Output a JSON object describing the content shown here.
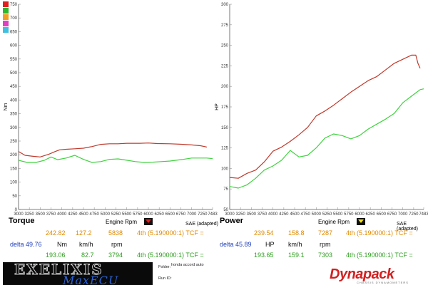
{
  "legend_colors": [
    "#e02020",
    "#2db82d",
    "#f0a020",
    "#e040c0",
    "#40c0e0"
  ],
  "torque": {
    "title": "Torque",
    "ylabel": "Nm",
    "rpm_label": "Engine Rpm",
    "sae_label": "SAE (adapted)",
    "dropdown_icon": "triangle-down-red",
    "row1": {
      "value": "242.82",
      "speed": "127.2",
      "rpm": "5838",
      "gear": "4th (5.190000:1) TCF ="
    },
    "delta": {
      "label": "delta 49.76",
      "unit1": "Nm",
      "unit2": "km/h",
      "unit3": "rpm"
    },
    "row2": {
      "value": "193.06",
      "speed": "82.7",
      "rpm": "3794",
      "gear": "4th (5.190000:1) TCF ="
    }
  },
  "power": {
    "title": "Power",
    "ylabel": "HP",
    "rpm_label": "Engine Rpm",
    "sae_label": "SAE (adapted)",
    "dropdown_icon": "triangle-down-yellow",
    "row1": {
      "value": "239.54",
      "speed": "158.8",
      "rpm": "7287",
      "gear": "4th (5.190000:1) TCF ="
    },
    "delta": {
      "label": "delta 45.89",
      "unit1": "HP",
      "unit2": "km/h",
      "unit3": "rpm"
    },
    "row2": {
      "value": "193.65",
      "speed": "159.1",
      "rpm": "7303",
      "gear": "4th (5.190000:1) TCF ="
    }
  },
  "footer": {
    "logo_top": "EXELIXIS",
    "logo_bottom": "MaxECU",
    "folder_label": "Folder:",
    "folder_value": "honda accord auto",
    "run_label": "Run ID:",
    "brand": "Dynapack",
    "brand_sub": "CHASSIS DYNAMOMETERS"
  },
  "chart_data": [
    {
      "type": "line",
      "title": "Torque",
      "xlabel": "Engine Rpm",
      "ylabel": "Nm",
      "xlim": [
        3000,
        7483
      ],
      "ylim": [
        0,
        750
      ],
      "x_ticks": [
        "3000",
        "3250",
        "3500",
        "3750",
        "4000",
        "4250",
        "4500",
        "4750",
        "5000",
        "5250",
        "5500",
        "5750",
        "6000",
        "6250",
        "6500",
        "6750",
        "7000",
        "7250",
        "7483"
      ],
      "y_ticks": [
        "0",
        "50",
        "100",
        "150",
        "200",
        "250",
        "300",
        "350",
        "400",
        "450",
        "500",
        "550",
        "600",
        "650",
        "700",
        "750"
      ],
      "series": [
        {
          "color": "#c0392b",
          "x": [
            3000,
            3150,
            3300,
            3500,
            3700,
            3850,
            3950,
            4100,
            4300,
            4500,
            4700,
            4900,
            5100,
            5300,
            5500,
            5800,
            6000,
            6200,
            6500,
            6800,
            7000,
            7200,
            7300,
            7350
          ],
          "y": [
            212,
            198,
            195,
            192,
            202,
            212,
            218,
            220,
            222,
            224,
            230,
            238,
            240,
            240,
            242,
            242,
            243,
            241,
            240,
            238,
            236,
            233,
            230,
            228
          ]
        },
        {
          "color": "#3fd23f",
          "x": [
            3000,
            3200,
            3400,
            3600,
            3750,
            3900,
            4100,
            4300,
            4500,
            4700,
            4900,
            5100,
            5300,
            5500,
            5700,
            5900,
            6100,
            6300,
            6500,
            6800,
            7000,
            7200,
            7350,
            7483
          ],
          "y": [
            180,
            172,
            172,
            180,
            192,
            182,
            188,
            198,
            183,
            172,
            175,
            183,
            185,
            180,
            175,
            172,
            173,
            175,
            177,
            183,
            188,
            188,
            188,
            186
          ]
        }
      ]
    },
    {
      "type": "line",
      "title": "Power",
      "xlabel": "Engine Rpm",
      "ylabel": "HP",
      "xlim": [
        3000,
        7483
      ],
      "ylim": [
        50,
        300
      ],
      "x_ticks": [
        "3000",
        "3250",
        "3500",
        "3750",
        "4000",
        "4250",
        "4500",
        "4750",
        "5000",
        "5250",
        "5500",
        "5750",
        "6000",
        "6250",
        "6500",
        "6750",
        "7000",
        "7250",
        "7483"
      ],
      "y_ticks": [
        "50",
        "75",
        "100",
        "125",
        "150",
        "175",
        "200",
        "225",
        "250",
        "275",
        "300"
      ],
      "series": [
        {
          "color": "#c0392b",
          "x": [
            3000,
            3200,
            3400,
            3600,
            3800,
            4000,
            4200,
            4400,
            4600,
            4800,
            5000,
            5200,
            5400,
            5600,
            5800,
            6000,
            6200,
            6400,
            6600,
            6800,
            7000,
            7200,
            7300,
            7350,
            7400
          ],
          "y": [
            89,
            88,
            94,
            98,
            108,
            121,
            126,
            133,
            141,
            150,
            164,
            170,
            177,
            185,
            193,
            200,
            207,
            212,
            220,
            228,
            233,
            238,
            238,
            228,
            222
          ]
        },
        {
          "color": "#3fd23f",
          "x": [
            3000,
            3200,
            3400,
            3600,
            3800,
            4000,
            4200,
            4400,
            4600,
            4800,
            5000,
            5200,
            5400,
            5600,
            5800,
            6000,
            6200,
            6400,
            6600,
            6800,
            7000,
            7200,
            7300,
            7400,
            7483
          ],
          "y": [
            78,
            76,
            80,
            88,
            98,
            103,
            110,
            122,
            114,
            116,
            125,
            137,
            142,
            140,
            136,
            140,
            148,
            154,
            160,
            167,
            180,
            188,
            192,
            196,
            197
          ]
        }
      ]
    }
  ]
}
